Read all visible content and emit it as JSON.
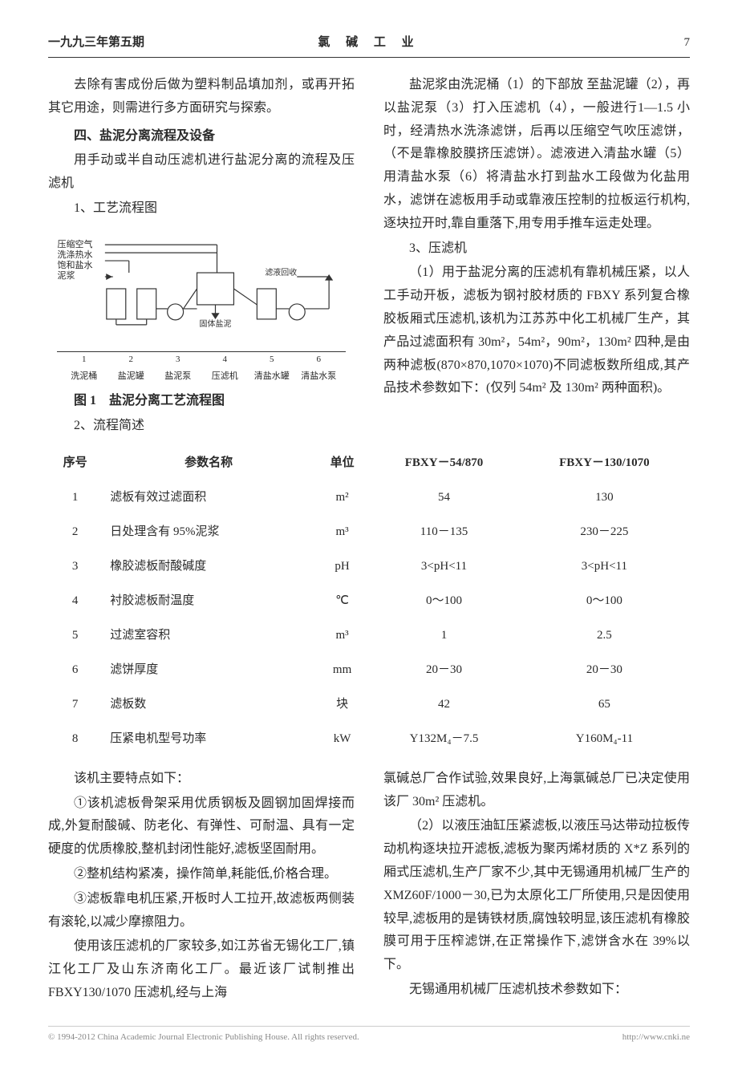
{
  "header": {
    "left": "一九九三年第五期",
    "center": "氯 碱 工 业",
    "page": "7"
  },
  "colA": {
    "p1": "去除有害成份后做为塑料制品填加剂，或再开拓其它用途，则需进行多方面研究与探索。",
    "h4": "四、盐泥分离流程及设备",
    "p2": "用手动或半自动压滤机进行盐泥分离的流程及压滤机",
    "s1": "1、工艺流程图",
    "figcap": "图 1　盐泥分离工艺流程图",
    "s2": "2、流程简述"
  },
  "colB": {
    "p1": "盐泥浆由洗泥桶（1）的下部放 至盐泥罐（2），再以盐泥泵（3）打入压滤机（4），一般进行1—1.5 小时，经清热水洗涤滤饼，后再以压缩空气吹压滤饼，（不是靠橡胶膜挤压滤饼）。滤液进入清盐水罐（5）用清盐水泵（6）将清盐水打到盐水工段做为化盐用水，滤饼在滤板用手动或靠液压控制的拉板运行机构,逐块拉开时,靠自重落下,用专用手推车运走处理。",
    "s3": "3、压滤机",
    "p2": "（1）用于盐泥分离的压滤机有靠机械压紧，以人工手动开板，滤板为钢衬胶材质的 FBXY 系列复合橡胶板厢式压滤机,该机为江苏苏中化工机械厂生产，其产品过滤面积有 30m²，54m²，90m²，130m² 四种,是由两种滤板(870×870,1070×1070)不同滤板数所组成,其产品技术参数如下：(仅列 54m² 及 130m² 两种面积)。"
  },
  "table": {
    "headers": [
      "序号",
      "参数名称",
      "单位",
      "FBXY－54/870",
      "FBXY－130/1070"
    ],
    "rows": [
      [
        "1",
        "滤板有效过滤面积",
        "m²",
        "54",
        "130"
      ],
      [
        "2",
        "日处理含有 95%泥浆",
        "m³",
        "110－135",
        "230－225"
      ],
      [
        "3",
        "橡胶滤板耐酸碱度",
        "pH",
        "3<pH<11",
        "3<pH<11"
      ],
      [
        "4",
        "衬胶滤板耐温度",
        "℃",
        "0～100",
        "0～100"
      ],
      [
        "5",
        "过滤室容积",
        "m³",
        "1",
        "2.5"
      ],
      [
        "6",
        "滤饼厚度",
        "mm",
        "20－30",
        "20－30"
      ],
      [
        "7",
        "滤板数",
        "块",
        "42",
        "65"
      ],
      [
        "8",
        "压紧电机型号功率",
        "kW",
        "Y132M₄－7.5",
        "Y160M₄-11"
      ]
    ]
  },
  "colC": {
    "p1": "该机主要特点如下：",
    "p2": "①该机滤板骨架采用优质钢板及圆钢加固焊接而成,外复耐酸碱、防老化、有弹性、可耐温、具有一定硬度的优质橡胶,整机封闭性能好,滤板坚固耐用。",
    "p3": "②整机结构紧凑，操作简单,耗能低,价格合理。",
    "p4": "③滤板靠电机压紧,开板时人工拉开,故滤板两侧装有滚轮,以减少摩擦阻力。",
    "p5": "使用该压滤机的厂家较多,如江苏省无锡化工厂,镇江化工厂及山东济南化工厂。最近该厂试制推出 FBXY130/1070 压滤机,经与上海"
  },
  "colD": {
    "p1": "氯碱总厂合作试验,效果良好,上海氯碱总厂已决定使用该厂 30m² 压滤机。",
    "p2": "（2）以液压油缸压紧滤板,以液压马达带动拉板传动机构逐块拉开滤板,滤板为聚丙烯材质的 X*Z 系列的厢式压滤机,生产厂家不少,其中无锡通用机械厂生产的 XMZ60F/1000－30,已为太原化工厂所使用,只是因使用较早,滤板用的是铸铁材质,腐蚀较明显,该压滤机有橡胶膜可用于压榨滤饼,在正常操作下,滤饼含水在 39%以下。",
    "p3": "无锡通用机械厂压滤机技术参数如下："
  },
  "figure": {
    "left_labels": [
      "压缩空气",
      "洗涤热水",
      "饱和盐水",
      "泥浆"
    ],
    "right_label": "滤液回收",
    "mid_label": "固体盐泥",
    "bottom_numbers": [
      "1",
      "2",
      "3",
      "4",
      "5",
      "6"
    ],
    "bottom_labels": [
      "洗泥桶",
      "盐泥罐",
      "盐泥泵",
      "压滤机",
      "清盐水罐",
      "清盐水泵"
    ]
  },
  "footer": {
    "left": "© 1994-2012 China Academic Journal Electronic Publishing House. All rights reserved.",
    "right": "http://www.cnki.ne"
  },
  "colors": {
    "text": "#2a2a2a",
    "line": "#333333",
    "bg": "#ffffff",
    "footer": "#888888"
  }
}
